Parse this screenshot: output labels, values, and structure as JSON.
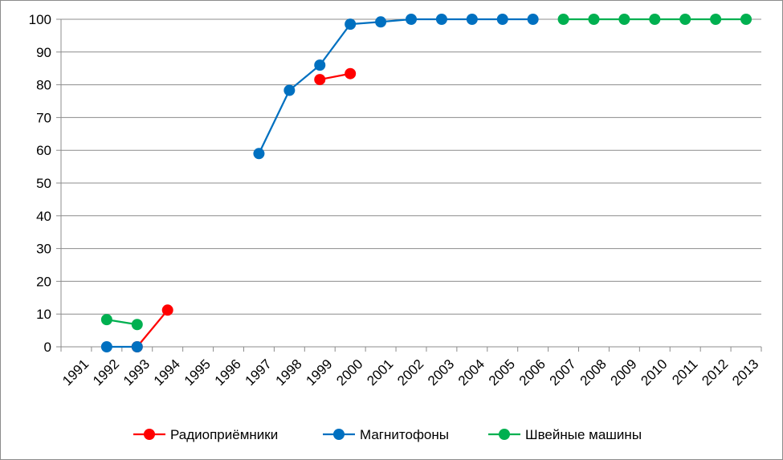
{
  "chart_data": {
    "type": "line",
    "title": "",
    "xlabel": "",
    "ylabel": "",
    "categories": [
      "1991",
      "1992",
      "1993",
      "1994",
      "1995",
      "1996",
      "1997",
      "1998",
      "1999",
      "2000",
      "2001",
      "2002",
      "2003",
      "2004",
      "2005",
      "2006",
      "2007",
      "2008",
      "2009",
      "2010",
      "2011",
      "2012",
      "2013"
    ],
    "ylim": [
      0,
      100
    ],
    "yticks": [
      "0",
      "10",
      "20",
      "30",
      "40",
      "50",
      "60",
      "70",
      "80",
      "90",
      "100"
    ],
    "grid": true,
    "legend_position": "bottom",
    "series": [
      {
        "name": "Радиоприёмники",
        "color": "#ff0000",
        "values": [
          null,
          null,
          0,
          11.2,
          null,
          null,
          null,
          null,
          81.6,
          83.4,
          null,
          null,
          null,
          null,
          null,
          null,
          null,
          null,
          null,
          null,
          null,
          null,
          null
        ]
      },
      {
        "name": "Магнитофоны",
        "color": "#0070c0",
        "values": [
          null,
          0,
          0,
          null,
          null,
          null,
          59,
          78.3,
          86,
          98.5,
          99.2,
          100,
          100,
          100,
          100,
          100,
          null,
          null,
          null,
          null,
          null,
          null,
          null
        ]
      },
      {
        "name": "Швейные машины",
        "color": "#00b050",
        "values": [
          null,
          8.3,
          6.8,
          null,
          null,
          null,
          null,
          null,
          null,
          null,
          null,
          null,
          null,
          null,
          null,
          null,
          100,
          100,
          100,
          100,
          100,
          100,
          100
        ]
      }
    ]
  }
}
